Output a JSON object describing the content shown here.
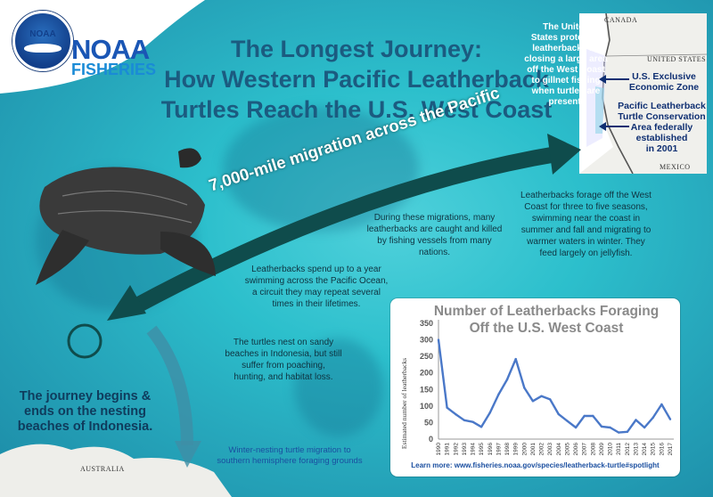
{
  "brand": {
    "logo_text": "NOAA",
    "name": "NOAA",
    "division": "FISHERIES"
  },
  "title": {
    "line1": "The Longest Journey:",
    "line2": "How Western Pacific Leatherback",
    "line3": "Turtles Reach the U.S. West Coast"
  },
  "map_labels": {
    "canada": "CANADA",
    "united_states": "UNITED STATES",
    "mexico": "MEXICO",
    "australia": "AUSTRALIA"
  },
  "notes": {
    "protection": [
      "The United",
      "States protected",
      "leatherbacks by",
      "closing a large area",
      "off the West Coast",
      "to gillnet fishing",
      "when turtles are",
      "present."
    ],
    "eez": [
      "U.S. Exclusive",
      "Economic Zone"
    ],
    "conservation_area": [
      "Pacific Leatherback",
      "Turtle Conservation",
      "Area federally",
      "established",
      "in 2001"
    ],
    "migration_label": "7,000-mile migration across the Pacific",
    "forage": [
      "Leatherbacks forage off the West",
      "Coast for three to five seasons,",
      "swimming near the coast in",
      "summer and fall and migrating to",
      "warmer waters in winter. They",
      "feed largely on jellyfish."
    ],
    "caught": [
      "During these migrations, many",
      "leatherbacks are caught and killed",
      "by fishing vessels from many",
      "nations."
    ],
    "swimming": [
      "Leatherbacks spend up to a year",
      "swimming across the Pacific Ocean,",
      "a circuit they may repeat several",
      "times in their lifetimes."
    ],
    "nesting": [
      "The turtles nest on sandy",
      "beaches in Indonesia, but still",
      "suffer from poaching,",
      "hunting, and habitat loss."
    ],
    "journey": [
      "The journey begins &",
      "ends on the nesting",
      "beaches of Indonesia."
    ],
    "winter": [
      "Winter-nesting turtle migration to",
      "southern hemisphere foraging grounds"
    ]
  },
  "learn_more": "Learn more: www.fisheries.noaa.gov/species/leatherback-turtle#spotlight",
  "colors": {
    "arrow": "#0f4c4c",
    "line": "#4a78c8",
    "title": "#1b5b80"
  },
  "chart_data": {
    "type": "line",
    "title": "Number of Leatherbacks Foraging Off the U.S. West Coast",
    "title_lines": [
      "Number of Leatherbacks Foraging",
      "Off the U.S. West Coast"
    ],
    "xlabel": "",
    "ylabel": "Estimated number of leatherbacks",
    "ylim": [
      0,
      350
    ],
    "yticks": [
      0,
      50,
      100,
      150,
      200,
      250,
      300,
      350
    ],
    "x": [
      "1990",
      "1991",
      "1992",
      "1993",
      "1994",
      "1995",
      "1996",
      "1997",
      "1998",
      "1999",
      "2000",
      "2001",
      "2002",
      "2003",
      "2004",
      "2005",
      "2006",
      "2007",
      "2008",
      "2009",
      "2010",
      "2011",
      "2012",
      "2013",
      "2014",
      "2015",
      "2016",
      "2017"
    ],
    "values": [
      300,
      95,
      75,
      57,
      52,
      37,
      80,
      135,
      180,
      242,
      155,
      115,
      130,
      120,
      75,
      55,
      35,
      70,
      70,
      38,
      35,
      20,
      22,
      58,
      35,
      65,
      105,
      60
    ],
    "grid": false
  }
}
